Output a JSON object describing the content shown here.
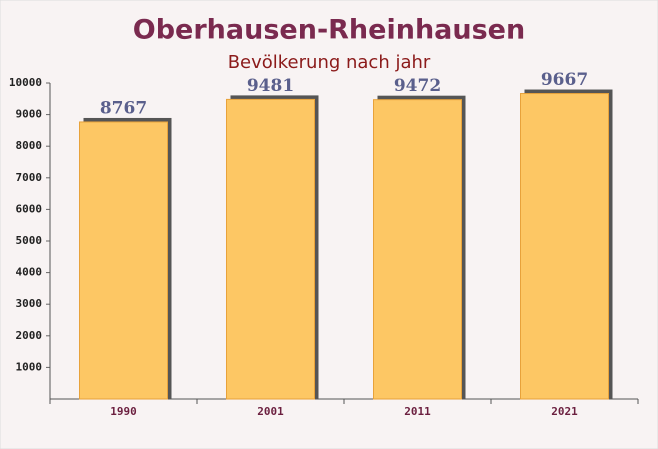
{
  "chart_data": {
    "type": "bar",
    "title": "Oberhausen-Rheinhausen",
    "subtitle": "Bevölkerung nach jahr",
    "categories": [
      "1990",
      "2001",
      "2011",
      "2021"
    ],
    "values": [
      8767,
      9481,
      9472,
      9667
    ],
    "color": "#fdc764",
    "ylim": [
      0,
      10000
    ],
    "yticks": [
      1000,
      2000,
      3000,
      4000,
      5000,
      6000,
      7000,
      8000,
      9000,
      10000
    ]
  }
}
